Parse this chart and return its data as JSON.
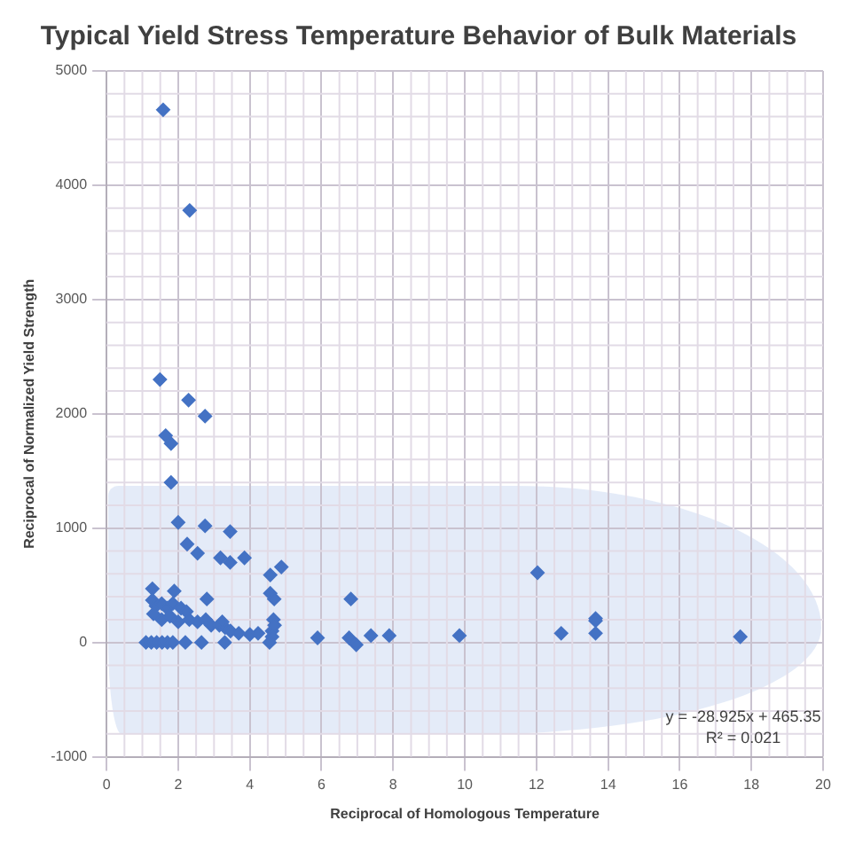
{
  "chart_data": {
    "type": "scatter",
    "title": "Typical Yield Stress Temperature Behavior of Bulk Materials",
    "xlabel": "Reciprocal of Homologous Temperature",
    "ylabel": "Reciprocal of Normalized Yield Strength",
    "annotations": [
      "y = -28.925x + 465.35",
      "R² = 0.021"
    ],
    "series": [
      {
        "color": "#4472c4",
        "x": [
          1.58,
          2.32,
          1.49,
          2.29,
          2.75,
          1.65,
          1.8,
          1.8,
          2.0,
          2.75,
          3.45,
          2.25,
          2.54,
          3.18,
          3.45,
          3.85,
          4.88,
          4.57,
          4.57,
          4.68,
          1.28,
          1.89,
          2.8,
          6.82,
          4.66,
          1.28,
          1.38,
          1.54,
          1.69,
          1.85,
          2.08,
          2.23,
          1.31,
          1.54,
          1.77,
          2.0,
          2.31,
          2.54,
          2.77,
          2.92,
          3.15,
          3.31,
          3.23,
          3.46,
          3.69,
          4.0,
          4.23,
          4.62,
          4.69,
          4.62,
          1.1,
          1.25,
          1.4,
          1.55,
          1.7,
          1.85,
          2.2,
          2.65,
          3.3,
          4.55,
          5.89,
          6.77,
          6.97,
          7.38,
          7.89,
          9.85,
          12.03,
          12.69,
          13.65,
          13.65,
          13.65,
          17.69
        ],
        "values": [
          4660,
          3780,
          2300,
          2120,
          1980,
          1810,
          1740,
          1400,
          1050,
          1020,
          970,
          860,
          780,
          740,
          700,
          740,
          660,
          590,
          430,
          380,
          470,
          450,
          380,
          380,
          200,
          370,
          320,
          340,
          300,
          340,
          300,
          270,
          250,
          200,
          230,
          180,
          200,
          180,
          200,
          150,
          150,
          130,
          180,
          100,
          80,
          70,
          80,
          100,
          150,
          50,
          0,
          0,
          0,
          0,
          0,
          0,
          0,
          0,
          0,
          0,
          40,
          40,
          -20,
          60,
          60,
          60,
          610,
          80,
          210,
          190,
          80,
          50
        ]
      }
    ],
    "xlim": [
      0,
      20
    ],
    "xticks": [
      0,
      2,
      4,
      6,
      8,
      10,
      12,
      14,
      16,
      18,
      20
    ],
    "ylim": [
      -1000,
      5000
    ],
    "yticks": [
      -1000,
      0,
      1000,
      2000,
      3000,
      4000,
      5000
    ],
    "grid": true,
    "legend": false,
    "marker": "diamond"
  }
}
